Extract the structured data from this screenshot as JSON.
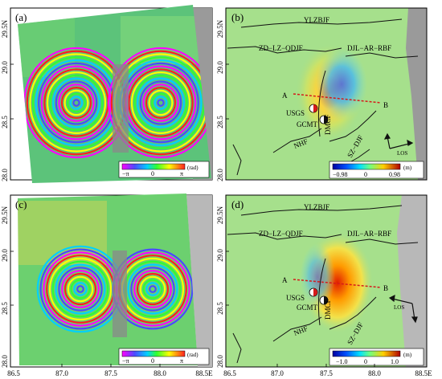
{
  "axes": {
    "left_y_top": [
      "29.5N",
      "29.0",
      "28.5",
      "28.0"
    ],
    "left_y_bottom": [
      "29.5N",
      "29.0",
      "28.5",
      "28.0"
    ],
    "right_y_top": [
      "29.5N",
      "29.0",
      "28.5",
      "28.0"
    ],
    "right_y_bottom": [
      "29.5N",
      "29.0",
      "28.5",
      "28.0"
    ],
    "x_left": [
      "86.5",
      "87.0",
      "87.5",
      "88.0",
      "88.5E"
    ],
    "x_right": [
      "86.5",
      "87.0",
      "87.5",
      "88.0",
      "88.5E"
    ]
  },
  "panels": {
    "a": {
      "label": "(a)",
      "cb_min": "−π",
      "cb_mid": "0",
      "cb_max": "π",
      "cb_unit": "(rad)"
    },
    "b": {
      "label": "(b)",
      "cb_min": "−0.98",
      "cb_mid": "0",
      "cb_max": "0.98",
      "cb_unit": "(m)"
    },
    "c": {
      "label": "(c)",
      "cb_min": "−π",
      "cb_mid": "0",
      "cb_max": "π",
      "cb_unit": "(rad)"
    },
    "d": {
      "label": "(d)",
      "cb_min": "−1.0",
      "cb_mid": "0",
      "cb_max": "1.0",
      "cb_unit": "(m)"
    }
  },
  "map_labels": {
    "ylzbjf": "YLZBJF",
    "zd": "ZD−LZ−QDJF",
    "djl": "DJL−AR−RBF",
    "a_point": "A",
    "b_point": "B",
    "usgs": "USGS",
    "gcmt": "GCMT",
    "dmcf": "DMCF",
    "nhf": "NHF",
    "szdjf": "SZ−DJF",
    "los": "LOS"
  },
  "colors": {
    "hillshade": "#9a9a9a",
    "profile_line": "#d61a1a",
    "fault_line": "#111111"
  }
}
